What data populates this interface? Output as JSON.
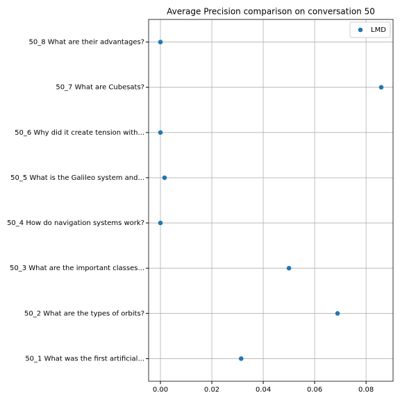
{
  "chart_data": {
    "type": "scatter",
    "title": "Average Precision comparison on conversation 50",
    "categories": [
      "50_1 What was the first artificial...",
      "50_2 What are the types of orbits?",
      "50_3 What are the important classes...",
      "50_4 How do navigation systems work?",
      "50_5 What is the Galileo system and...",
      "50_6 Why did it create tension with...",
      "50_7 What are Cubesats?",
      "50_8 What are their advantages?"
    ],
    "series": [
      {
        "name": "LMD",
        "color": "#1f77b4",
        "values": [
          0.0314,
          0.0689,
          0.05,
          0,
          0.0016,
          0,
          0.0859,
          0
        ]
      }
    ],
    "xlim": [
      -0.0046,
      0.0905
    ],
    "xticks": [
      {
        "value": 0,
        "label": "0.00"
      },
      {
        "value": 0.02,
        "label": "0.02"
      },
      {
        "value": 0.04,
        "label": "0.04"
      },
      {
        "value": 0.06,
        "label": "0.06"
      },
      {
        "value": 0.08,
        "label": "0.08"
      }
    ],
    "grid": true,
    "legend": "upper right"
  }
}
